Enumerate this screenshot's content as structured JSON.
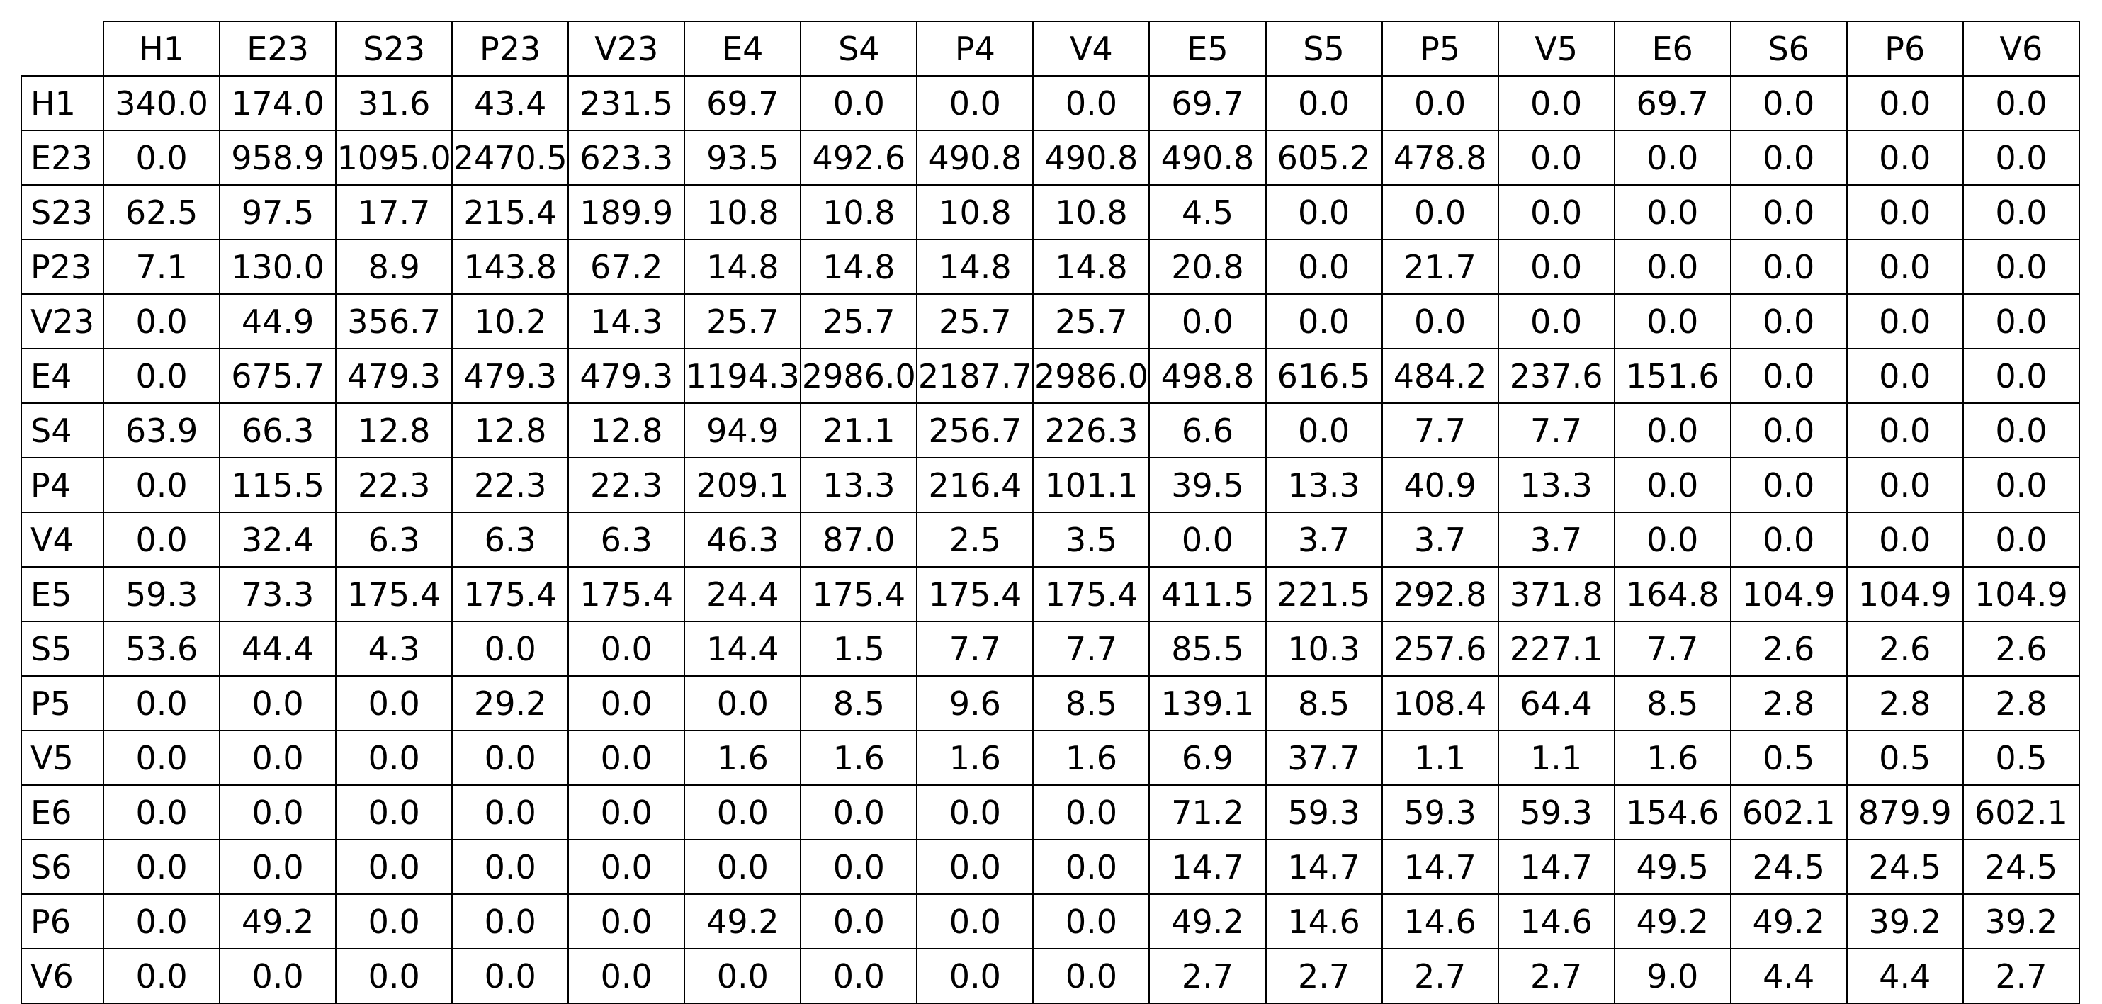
{
  "chart_data": {
    "type": "table",
    "columns": [
      "H1",
      "E23",
      "S23",
      "P23",
      "V23",
      "E4",
      "S4",
      "P4",
      "V4",
      "E5",
      "S5",
      "P5",
      "V5",
      "E6",
      "S6",
      "P6",
      "V6"
    ],
    "rows": [
      {
        "label": "H1",
        "values": [
          "340.0",
          "174.0",
          "31.6",
          "43.4",
          "231.5",
          "69.7",
          "0.0",
          "0.0",
          "0.0",
          "69.7",
          "0.0",
          "0.0",
          "0.0",
          "69.7",
          "0.0",
          "0.0",
          "0.0"
        ]
      },
      {
        "label": "E23",
        "values": [
          "0.0",
          "958.9",
          "1095.0",
          "2470.5",
          "623.3",
          "93.5",
          "492.6",
          "490.8",
          "490.8",
          "490.8",
          "605.2",
          "478.8",
          "0.0",
          "0.0",
          "0.0",
          "0.0",
          "0.0"
        ]
      },
      {
        "label": "S23",
        "values": [
          "62.5",
          "97.5",
          "17.7",
          "215.4",
          "189.9",
          "10.8",
          "10.8",
          "10.8",
          "10.8",
          "4.5",
          "0.0",
          "0.0",
          "0.0",
          "0.0",
          "0.0",
          "0.0",
          "0.0"
        ]
      },
      {
        "label": "P23",
        "values": [
          "7.1",
          "130.0",
          "8.9",
          "143.8",
          "67.2",
          "14.8",
          "14.8",
          "14.8",
          "14.8",
          "20.8",
          "0.0",
          "21.7",
          "0.0",
          "0.0",
          "0.0",
          "0.0",
          "0.0"
        ]
      },
      {
        "label": "V23",
        "values": [
          "0.0",
          "44.9",
          "356.7",
          "10.2",
          "14.3",
          "25.7",
          "25.7",
          "25.7",
          "25.7",
          "0.0",
          "0.0",
          "0.0",
          "0.0",
          "0.0",
          "0.0",
          "0.0",
          "0.0"
        ]
      },
      {
        "label": "E4",
        "values": [
          "0.0",
          "675.7",
          "479.3",
          "479.3",
          "479.3",
          "1194.3",
          "2986.0",
          "2187.7",
          "2986.0",
          "498.8",
          "616.5",
          "484.2",
          "237.6",
          "151.6",
          "0.0",
          "0.0",
          "0.0"
        ]
      },
      {
        "label": "S4",
        "values": [
          "63.9",
          "66.3",
          "12.8",
          "12.8",
          "12.8",
          "94.9",
          "21.1",
          "256.7",
          "226.3",
          "6.6",
          "0.0",
          "7.7",
          "7.7",
          "0.0",
          "0.0",
          "0.0",
          "0.0"
        ]
      },
      {
        "label": "P4",
        "values": [
          "0.0",
          "115.5",
          "22.3",
          "22.3",
          "22.3",
          "209.1",
          "13.3",
          "216.4",
          "101.1",
          "39.5",
          "13.3",
          "40.9",
          "13.3",
          "0.0",
          "0.0",
          "0.0",
          "0.0"
        ]
      },
      {
        "label": "V4",
        "values": [
          "0.0",
          "32.4",
          "6.3",
          "6.3",
          "6.3",
          "46.3",
          "87.0",
          "2.5",
          "3.5",
          "0.0",
          "3.7",
          "3.7",
          "3.7",
          "0.0",
          "0.0",
          "0.0",
          "0.0"
        ]
      },
      {
        "label": "E5",
        "values": [
          "59.3",
          "73.3",
          "175.4",
          "175.4",
          "175.4",
          "24.4",
          "175.4",
          "175.4",
          "175.4",
          "411.5",
          "221.5",
          "292.8",
          "371.8",
          "164.8",
          "104.9",
          "104.9",
          "104.9"
        ]
      },
      {
        "label": "S5",
        "values": [
          "53.6",
          "44.4",
          "4.3",
          "0.0",
          "0.0",
          "14.4",
          "1.5",
          "7.7",
          "7.7",
          "85.5",
          "10.3",
          "257.6",
          "227.1",
          "7.7",
          "2.6",
          "2.6",
          "2.6"
        ]
      },
      {
        "label": "P5",
        "values": [
          "0.0",
          "0.0",
          "0.0",
          "29.2",
          "0.0",
          "0.0",
          "8.5",
          "9.6",
          "8.5",
          "139.1",
          "8.5",
          "108.4",
          "64.4",
          "8.5",
          "2.8",
          "2.8",
          "2.8"
        ]
      },
      {
        "label": "V5",
        "values": [
          "0.0",
          "0.0",
          "0.0",
          "0.0",
          "0.0",
          "1.6",
          "1.6",
          "1.6",
          "1.6",
          "6.9",
          "37.7",
          "1.1",
          "1.1",
          "1.6",
          "0.5",
          "0.5",
          "0.5"
        ]
      },
      {
        "label": "E6",
        "values": [
          "0.0",
          "0.0",
          "0.0",
          "0.0",
          "0.0",
          "0.0",
          "0.0",
          "0.0",
          "0.0",
          "71.2",
          "59.3",
          "59.3",
          "59.3",
          "154.6",
          "602.1",
          "879.9",
          "602.1"
        ]
      },
      {
        "label": "S6",
        "values": [
          "0.0",
          "0.0",
          "0.0",
          "0.0",
          "0.0",
          "0.0",
          "0.0",
          "0.0",
          "0.0",
          "14.7",
          "14.7",
          "14.7",
          "14.7",
          "49.5",
          "24.5",
          "24.5",
          "24.5"
        ]
      },
      {
        "label": "P6",
        "values": [
          "0.0",
          "49.2",
          "0.0",
          "0.0",
          "0.0",
          "49.2",
          "0.0",
          "0.0",
          "0.0",
          "49.2",
          "14.6",
          "14.6",
          "14.6",
          "49.2",
          "49.2",
          "39.2",
          "39.2"
        ]
      },
      {
        "label": "V6",
        "values": [
          "0.0",
          "0.0",
          "0.0",
          "0.0",
          "0.0",
          "0.0",
          "0.0",
          "0.0",
          "0.0",
          "2.7",
          "2.7",
          "2.7",
          "2.7",
          "9.0",
          "4.4",
          "4.4",
          "2.7"
        ]
      }
    ]
  }
}
